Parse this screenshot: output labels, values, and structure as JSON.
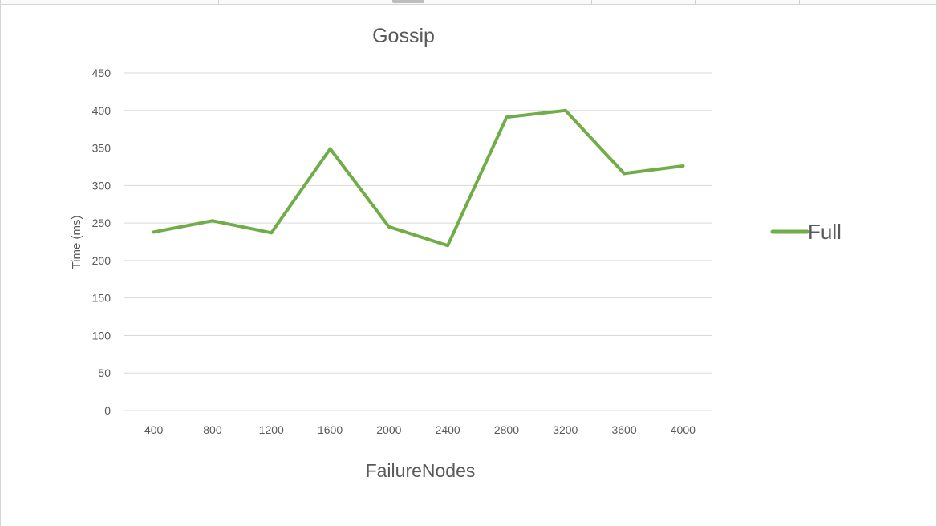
{
  "chart_data": {
    "type": "line",
    "title": "Gossip",
    "xlabel": "FailureNodes",
    "ylabel": "Time (ms)",
    "categories": [
      "400",
      "800",
      "1200",
      "1600",
      "2000",
      "2400",
      "2800",
      "3200",
      "3600",
      "4000"
    ],
    "series": [
      {
        "name": "Full",
        "values": [
          238,
          253,
          237,
          349,
          245,
          220,
          391,
          400,
          316,
          326
        ],
        "color": "#70ad47"
      }
    ],
    "ylim": [
      0,
      450
    ],
    "yticks": [
      "0",
      "50",
      "100",
      "150",
      "200",
      "250",
      "300",
      "350",
      "400",
      "450"
    ],
    "grid": true,
    "legend": "right"
  }
}
